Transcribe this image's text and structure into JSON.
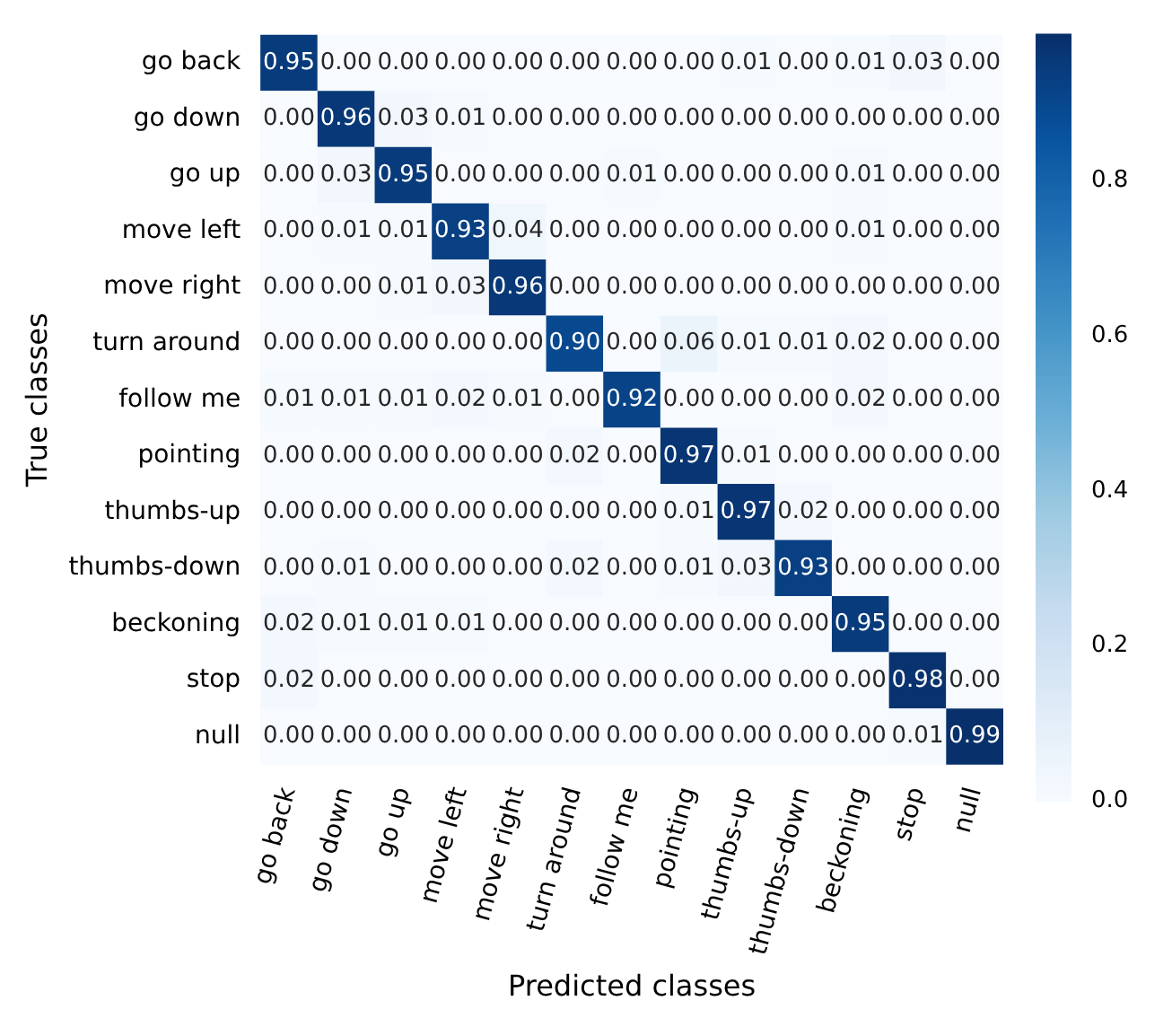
{
  "chart_data": {
    "type": "heatmap",
    "xlabel": "Predicted classes",
    "ylabel": "True classes",
    "data_labels": true,
    "categories": [
      "go back",
      "go down",
      "go up",
      "move left",
      "move right",
      "turn around",
      "follow me",
      "pointing",
      "thumbs-up",
      "thumbs-down",
      "beckoning",
      "stop",
      "null"
    ],
    "y_categories": [
      "go back",
      "go down",
      "go up",
      "move left",
      "move right",
      "turn around",
      "follow me",
      "pointing",
      "thumbs-up",
      "thumbs-down",
      "beckoning",
      "stop",
      "null"
    ],
    "cells": [
      [
        0.95,
        0.0,
        0.0,
        0.0,
        0.0,
        0.0,
        0.0,
        0.0,
        0.01,
        0.0,
        0.01,
        0.03,
        0.0
      ],
      [
        0.0,
        0.96,
        0.03,
        0.01,
        0.0,
        0.0,
        0.0,
        0.0,
        0.0,
        0.0,
        0.0,
        0.0,
        0.0
      ],
      [
        0.0,
        0.03,
        0.95,
        0.0,
        0.0,
        0.0,
        0.01,
        0.0,
        0.0,
        0.0,
        0.01,
        0.0,
        0.0
      ],
      [
        0.0,
        0.01,
        0.01,
        0.93,
        0.04,
        0.0,
        0.0,
        0.0,
        0.0,
        0.0,
        0.01,
        0.0,
        0.0
      ],
      [
        0.0,
        0.0,
        0.01,
        0.03,
        0.96,
        0.0,
        0.0,
        0.0,
        0.0,
        0.0,
        0.0,
        0.0,
        0.0
      ],
      [
        0.0,
        0.0,
        0.0,
        0.0,
        0.0,
        0.9,
        0.0,
        0.06,
        0.01,
        0.01,
        0.02,
        0.0,
        0.0
      ],
      [
        0.01,
        0.01,
        0.01,
        0.02,
        0.01,
        0.0,
        0.92,
        0.0,
        0.0,
        0.0,
        0.02,
        0.0,
        0.0
      ],
      [
        0.0,
        0.0,
        0.0,
        0.0,
        0.0,
        0.02,
        0.0,
        0.97,
        0.01,
        0.0,
        0.0,
        0.0,
        0.0
      ],
      [
        0.0,
        0.0,
        0.0,
        0.0,
        0.0,
        0.0,
        0.0,
        0.01,
        0.97,
        0.02,
        0.0,
        0.0,
        0.0
      ],
      [
        0.0,
        0.01,
        0.0,
        0.0,
        0.0,
        0.02,
        0.0,
        0.01,
        0.03,
        0.93,
        0.0,
        0.0,
        0.0
      ],
      [
        0.02,
        0.01,
        0.01,
        0.01,
        0.0,
        0.0,
        0.0,
        0.0,
        0.0,
        0.0,
        0.95,
        0.0,
        0.0
      ],
      [
        0.02,
        0.0,
        0.0,
        0.0,
        0.0,
        0.0,
        0.0,
        0.0,
        0.0,
        0.0,
        0.0,
        0.98,
        0.0
      ],
      [
        0.0,
        0.0,
        0.0,
        0.0,
        0.0,
        0.0,
        0.0,
        0.0,
        0.0,
        0.0,
        0.0,
        0.01,
        0.99
      ]
    ],
    "cell_labels": [
      [
        "0.95",
        "0.00",
        "0.00",
        "0.00",
        "0.00",
        "0.00",
        "0.00",
        "0.00",
        "0.01",
        "0.00",
        "0.01",
        "0.03",
        "0.00"
      ],
      [
        "0.00",
        "0.96",
        "0.03",
        "0.01",
        "0.00",
        "0.00",
        "0.00",
        "0.00",
        "0.00",
        "0.00",
        "0.00",
        "0.00",
        "0.00"
      ],
      [
        "0.00",
        "0.03",
        "0.95",
        "0.00",
        "0.00",
        "0.00",
        "0.01",
        "0.00",
        "0.00",
        "0.00",
        "0.01",
        "0.00",
        "0.00"
      ],
      [
        "0.00",
        "0.01",
        "0.01",
        "0.93",
        "0.04",
        "0.00",
        "0.00",
        "0.00",
        "0.00",
        "0.00",
        "0.01",
        "0.00",
        "0.00"
      ],
      [
        "0.00",
        "0.00",
        "0.01",
        "0.03",
        "0.96",
        "0.00",
        "0.00",
        "0.00",
        "0.00",
        "0.00",
        "0.00",
        "0.00",
        "0.00"
      ],
      [
        "0.00",
        "0.00",
        "0.00",
        "0.00",
        "0.00",
        "0.90",
        "0.00",
        "0.06",
        "0.01",
        "0.01",
        "0.02",
        "0.00",
        "0.00"
      ],
      [
        "0.01",
        "0.01",
        "0.01",
        "0.02",
        "0.01",
        "0.00",
        "0.92",
        "0.00",
        "0.00",
        "0.00",
        "0.02",
        "0.00",
        "0.00"
      ],
      [
        "0.00",
        "0.00",
        "0.00",
        "0.00",
        "0.00",
        "0.02",
        "0.00",
        "0.97",
        "0.01",
        "0.00",
        "0.00",
        "0.00",
        "0.00"
      ],
      [
        "0.00",
        "0.00",
        "0.00",
        "0.00",
        "0.00",
        "0.00",
        "0.00",
        "0.01",
        "0.97",
        "0.02",
        "0.00",
        "0.00",
        "0.00"
      ],
      [
        "0.00",
        "0.01",
        "0.00",
        "0.00",
        "0.00",
        "0.02",
        "0.00",
        "0.01",
        "0.03",
        "0.93",
        "0.00",
        "0.00",
        "0.00"
      ],
      [
        "0.02",
        "0.01",
        "0.01",
        "0.01",
        "0.00",
        "0.00",
        "0.00",
        "0.00",
        "0.00",
        "0.00",
        "0.95",
        "0.00",
        "0.00"
      ],
      [
        "0.02",
        "0.00",
        "0.00",
        "0.00",
        "0.00",
        "0.00",
        "0.00",
        "0.00",
        "0.00",
        "0.00",
        "0.00",
        "0.98",
        "0.00"
      ],
      [
        "0.00",
        "0.00",
        "0.00",
        "0.00",
        "0.00",
        "0.00",
        "0.00",
        "0.00",
        "0.00",
        "0.00",
        "0.00",
        "0.01",
        "0.99"
      ]
    ],
    "clim": [
      0,
      0.99
    ],
    "cticks": [
      {
        "value": 0,
        "label": "0.0"
      },
      {
        "value": 0.2,
        "label": "0.2"
      },
      {
        "value": 0.4,
        "label": "0.4"
      },
      {
        "value": 0.6,
        "label": "0.6"
      },
      {
        "value": 0.8,
        "label": "0.8"
      }
    ]
  }
}
